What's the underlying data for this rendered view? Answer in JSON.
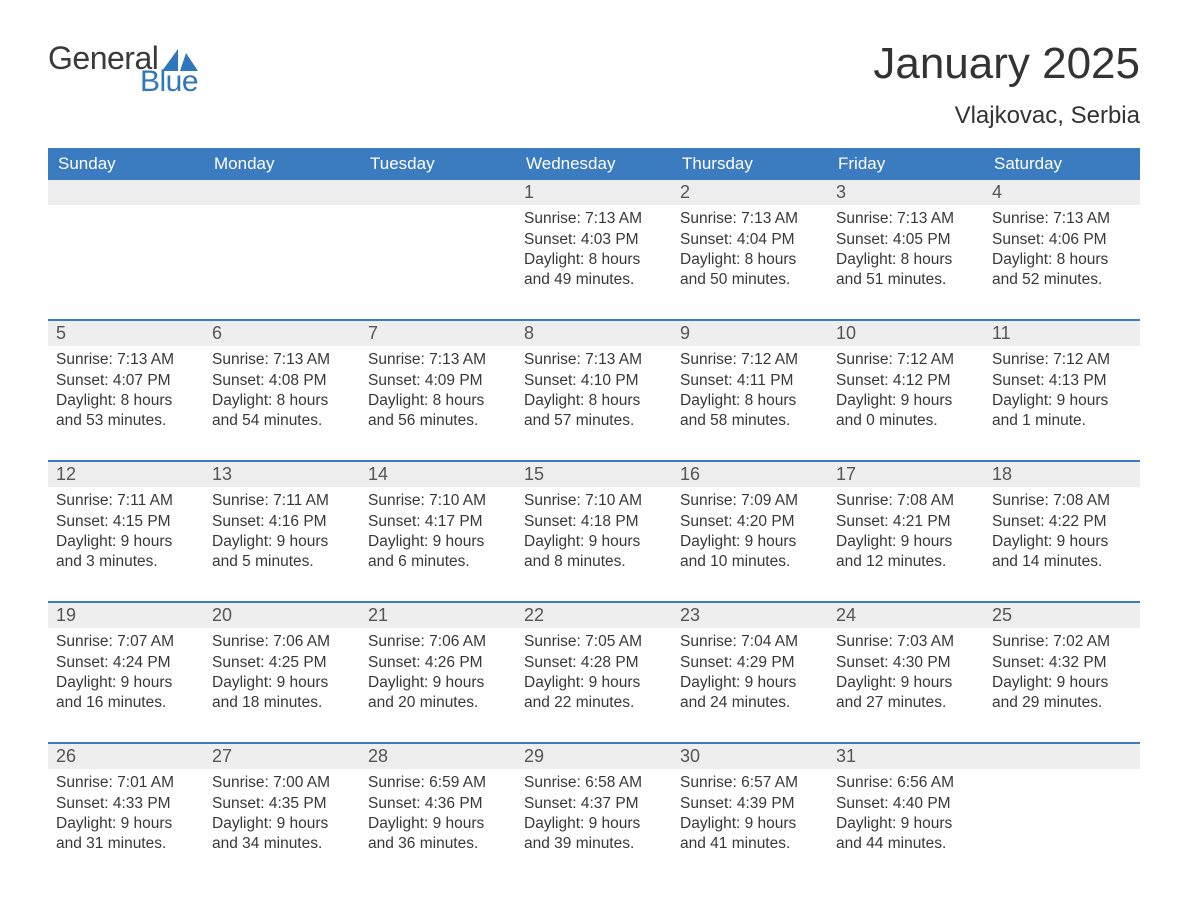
{
  "brand": {
    "word1": "General",
    "word2": "Blue",
    "flag_color": "#2f77bb",
    "text_gray": "#3a3a3a"
  },
  "title": "January 2025",
  "location": "Vlajkovac, Serbia",
  "colors": {
    "header_bg": "#3b7bbf",
    "header_text": "#ffffff",
    "daynum_bg": "#eeeeee",
    "daynum_text": "#555555",
    "body_text": "#383838",
    "rule": "#3b7bbf",
    "page_bg": "#ffffff"
  },
  "days_of_week": [
    "Sunday",
    "Monday",
    "Tuesday",
    "Wednesday",
    "Thursday",
    "Friday",
    "Saturday"
  ],
  "weeks": [
    [
      {
        "n": "",
        "lines": [
          "",
          "",
          "",
          ""
        ]
      },
      {
        "n": "",
        "lines": [
          "",
          "",
          "",
          ""
        ]
      },
      {
        "n": "",
        "lines": [
          "",
          "",
          "",
          ""
        ]
      },
      {
        "n": "1",
        "lines": [
          "Sunrise: 7:13 AM",
          "Sunset: 4:03 PM",
          "Daylight: 8 hours",
          "and 49 minutes."
        ]
      },
      {
        "n": "2",
        "lines": [
          "Sunrise: 7:13 AM",
          "Sunset: 4:04 PM",
          "Daylight: 8 hours",
          "and 50 minutes."
        ]
      },
      {
        "n": "3",
        "lines": [
          "Sunrise: 7:13 AM",
          "Sunset: 4:05 PM",
          "Daylight: 8 hours",
          "and 51 minutes."
        ]
      },
      {
        "n": "4",
        "lines": [
          "Sunrise: 7:13 AM",
          "Sunset: 4:06 PM",
          "Daylight: 8 hours",
          "and 52 minutes."
        ]
      }
    ],
    [
      {
        "n": "5",
        "lines": [
          "Sunrise: 7:13 AM",
          "Sunset: 4:07 PM",
          "Daylight: 8 hours",
          "and 53 minutes."
        ]
      },
      {
        "n": "6",
        "lines": [
          "Sunrise: 7:13 AM",
          "Sunset: 4:08 PM",
          "Daylight: 8 hours",
          "and 54 minutes."
        ]
      },
      {
        "n": "7",
        "lines": [
          "Sunrise: 7:13 AM",
          "Sunset: 4:09 PM",
          "Daylight: 8 hours",
          "and 56 minutes."
        ]
      },
      {
        "n": "8",
        "lines": [
          "Sunrise: 7:13 AM",
          "Sunset: 4:10 PM",
          "Daylight: 8 hours",
          "and 57 minutes."
        ]
      },
      {
        "n": "9",
        "lines": [
          "Sunrise: 7:12 AM",
          "Sunset: 4:11 PM",
          "Daylight: 8 hours",
          "and 58 minutes."
        ]
      },
      {
        "n": "10",
        "lines": [
          "Sunrise: 7:12 AM",
          "Sunset: 4:12 PM",
          "Daylight: 9 hours",
          "and 0 minutes."
        ]
      },
      {
        "n": "11",
        "lines": [
          "Sunrise: 7:12 AM",
          "Sunset: 4:13 PM",
          "Daylight: 9 hours",
          "and 1 minute."
        ]
      }
    ],
    [
      {
        "n": "12",
        "lines": [
          "Sunrise: 7:11 AM",
          "Sunset: 4:15 PM",
          "Daylight: 9 hours",
          "and 3 minutes."
        ]
      },
      {
        "n": "13",
        "lines": [
          "Sunrise: 7:11 AM",
          "Sunset: 4:16 PM",
          "Daylight: 9 hours",
          "and 5 minutes."
        ]
      },
      {
        "n": "14",
        "lines": [
          "Sunrise: 7:10 AM",
          "Sunset: 4:17 PM",
          "Daylight: 9 hours",
          "and 6 minutes."
        ]
      },
      {
        "n": "15",
        "lines": [
          "Sunrise: 7:10 AM",
          "Sunset: 4:18 PM",
          "Daylight: 9 hours",
          "and 8 minutes."
        ]
      },
      {
        "n": "16",
        "lines": [
          "Sunrise: 7:09 AM",
          "Sunset: 4:20 PM",
          "Daylight: 9 hours",
          "and 10 minutes."
        ]
      },
      {
        "n": "17",
        "lines": [
          "Sunrise: 7:08 AM",
          "Sunset: 4:21 PM",
          "Daylight: 9 hours",
          "and 12 minutes."
        ]
      },
      {
        "n": "18",
        "lines": [
          "Sunrise: 7:08 AM",
          "Sunset: 4:22 PM",
          "Daylight: 9 hours",
          "and 14 minutes."
        ]
      }
    ],
    [
      {
        "n": "19",
        "lines": [
          "Sunrise: 7:07 AM",
          "Sunset: 4:24 PM",
          "Daylight: 9 hours",
          "and 16 minutes."
        ]
      },
      {
        "n": "20",
        "lines": [
          "Sunrise: 7:06 AM",
          "Sunset: 4:25 PM",
          "Daylight: 9 hours",
          "and 18 minutes."
        ]
      },
      {
        "n": "21",
        "lines": [
          "Sunrise: 7:06 AM",
          "Sunset: 4:26 PM",
          "Daylight: 9 hours",
          "and 20 minutes."
        ]
      },
      {
        "n": "22",
        "lines": [
          "Sunrise: 7:05 AM",
          "Sunset: 4:28 PM",
          "Daylight: 9 hours",
          "and 22 minutes."
        ]
      },
      {
        "n": "23",
        "lines": [
          "Sunrise: 7:04 AM",
          "Sunset: 4:29 PM",
          "Daylight: 9 hours",
          "and 24 minutes."
        ]
      },
      {
        "n": "24",
        "lines": [
          "Sunrise: 7:03 AM",
          "Sunset: 4:30 PM",
          "Daylight: 9 hours",
          "and 27 minutes."
        ]
      },
      {
        "n": "25",
        "lines": [
          "Sunrise: 7:02 AM",
          "Sunset: 4:32 PM",
          "Daylight: 9 hours",
          "and 29 minutes."
        ]
      }
    ],
    [
      {
        "n": "26",
        "lines": [
          "Sunrise: 7:01 AM",
          "Sunset: 4:33 PM",
          "Daylight: 9 hours",
          "and 31 minutes."
        ]
      },
      {
        "n": "27",
        "lines": [
          "Sunrise: 7:00 AM",
          "Sunset: 4:35 PM",
          "Daylight: 9 hours",
          "and 34 minutes."
        ]
      },
      {
        "n": "28",
        "lines": [
          "Sunrise: 6:59 AM",
          "Sunset: 4:36 PM",
          "Daylight: 9 hours",
          "and 36 minutes."
        ]
      },
      {
        "n": "29",
        "lines": [
          "Sunrise: 6:58 AM",
          "Sunset: 4:37 PM",
          "Daylight: 9 hours",
          "and 39 minutes."
        ]
      },
      {
        "n": "30",
        "lines": [
          "Sunrise: 6:57 AM",
          "Sunset: 4:39 PM",
          "Daylight: 9 hours",
          "and 41 minutes."
        ]
      },
      {
        "n": "31",
        "lines": [
          "Sunrise: 6:56 AM",
          "Sunset: 4:40 PM",
          "Daylight: 9 hours",
          "and 44 minutes."
        ]
      },
      {
        "n": "",
        "lines": [
          "",
          "",
          "",
          ""
        ]
      }
    ]
  ]
}
